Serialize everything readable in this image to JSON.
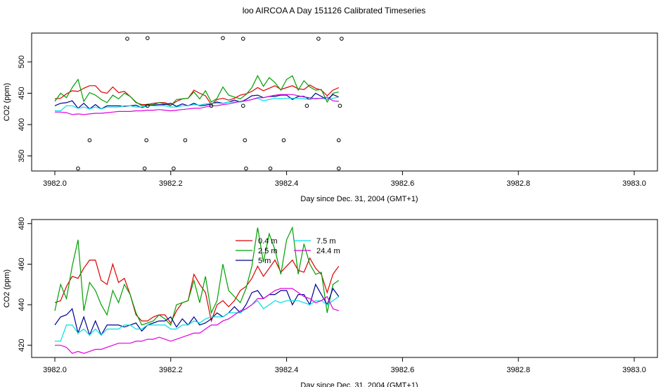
{
  "figure": {
    "title": "loo AIRCOA A  Day 151126  Calibrated Timeseries"
  },
  "chart_data": [
    {
      "type": "line",
      "panel": "top",
      "xlabel": "Day since Dec. 31, 2004 (GMT+1)",
      "ylabel": "CO2 (ppm)",
      "xlim": [
        3982.0,
        3983.0
      ],
      "ylim": [
        326,
        546
      ],
      "xticks": [
        3982.0,
        3982.2,
        3982.4,
        3982.6,
        3982.8,
        3983.0
      ],
      "xtick_labels": [
        "3982.0",
        "3982.2",
        "3982.4",
        "3982.6",
        "3982.8",
        "3983.0"
      ],
      "yticks": [
        350,
        400,
        450,
        500
      ],
      "ytick_labels": [
        "350",
        "400",
        "450",
        "500"
      ],
      "x": [
        3982.0,
        3982.01,
        3982.02,
        3982.03,
        3982.04,
        3982.05,
        3982.06,
        3982.07,
        3982.08,
        3982.09,
        3982.1,
        3982.11,
        3982.12,
        3982.13,
        3982.14,
        3982.15,
        3982.16,
        3982.17,
        3982.18,
        3982.19,
        3982.2,
        3982.21,
        3982.22,
        3982.23,
        3982.24,
        3982.25,
        3982.26,
        3982.27,
        3982.28,
        3982.29,
        3982.3,
        3982.31,
        3982.32,
        3982.33,
        3982.34,
        3982.35,
        3982.36,
        3982.37,
        3982.38,
        3982.39,
        3982.4,
        3982.41,
        3982.42,
        3982.43,
        3982.44,
        3982.45,
        3982.46,
        3982.47,
        3982.48,
        3982.49
      ],
      "series": [
        {
          "name": "0.4 m",
          "color": "#dd0000",
          "values": [
            441,
            442,
            449,
            454,
            453,
            458,
            462,
            462,
            452,
            450,
            460,
            451,
            453,
            445,
            435,
            432,
            432,
            434,
            435,
            435,
            431,
            437,
            441,
            442,
            455,
            450,
            446,
            432,
            440,
            442,
            439,
            442,
            447,
            449,
            453,
            459,
            454,
            458,
            462,
            456,
            459,
            462,
            457,
            456,
            463,
            458,
            455,
            446,
            455,
            459
          ]
        },
        {
          "name": "2.5 m",
          "color": "#00a000",
          "values": [
            437,
            450,
            443,
            459,
            472,
            437,
            451,
            447,
            440,
            435,
            447,
            441,
            450,
            445,
            436,
            430,
            431,
            432,
            435,
            433,
            430,
            440,
            441,
            442,
            452,
            441,
            454,
            436,
            442,
            460,
            447,
            444,
            441,
            448,
            459,
            478,
            461,
            475,
            467,
            455,
            472,
            478,
            455,
            470,
            460,
            455,
            456,
            436,
            450,
            452
          ]
        },
        {
          "name": "5 m",
          "color": "#000090",
          "values": [
            430,
            434,
            435,
            438,
            426,
            434,
            425,
            432,
            425,
            430,
            430,
            430,
            429,
            430,
            431,
            427,
            430,
            431,
            432,
            432,
            434,
            429,
            433,
            430,
            434,
            430,
            431,
            433,
            436,
            434,
            436,
            439,
            436,
            440,
            446,
            447,
            443,
            445,
            445,
            447,
            447,
            440,
            445,
            445,
            440,
            450,
            445,
            440,
            448,
            444
          ]
        },
        {
          "name": "7.5 m",
          "color": "#00e0e0",
          "values": [
            422,
            422,
            430,
            430,
            426,
            428,
            425,
            428,
            425,
            428,
            428,
            428,
            430,
            430,
            428,
            428,
            430,
            430,
            430,
            430,
            428,
            428,
            430,
            430,
            432,
            431,
            433,
            434,
            434,
            434,
            436,
            436,
            436,
            438,
            440,
            442,
            438,
            440,
            442,
            441,
            442,
            442,
            442,
            441,
            440,
            442,
            442,
            440,
            442,
            444
          ]
        },
        {
          "name": "24.4 m",
          "color": "#e000e0",
          "values": [
            420,
            420,
            419,
            416,
            417,
            416,
            417,
            418,
            418,
            419,
            420,
            421,
            421,
            421,
            422,
            422,
            423,
            423,
            424,
            423,
            422,
            423,
            424,
            425,
            426,
            426,
            428,
            430,
            430,
            432,
            433,
            435,
            437,
            438,
            440,
            443,
            443,
            445,
            447,
            448,
            448,
            448,
            446,
            444,
            443,
            441,
            442,
            444,
            438,
            437
          ]
        }
      ],
      "points": {
        "x": [
          3982.04,
          3982.06,
          3982.125,
          3982.155,
          3982.158,
          3982.16,
          3982.16,
          3982.205,
          3982.225,
          3982.27,
          3982.29,
          3982.325,
          3982.325,
          3982.328,
          3982.33,
          3982.372,
          3982.395,
          3982.435,
          3982.455,
          3982.49,
          3982.49,
          3982.492,
          3982.495
        ],
        "y": [
          330,
          375,
          537,
          330,
          375,
          538,
          430,
          330,
          375,
          430,
          538,
          537,
          430,
          375,
          330,
          330,
          375,
          430,
          537,
          330,
          375,
          430,
          537
        ]
      }
    },
    {
      "type": "line",
      "panel": "bottom",
      "xlabel": "Day since Dec. 31, 2004 (GMT+1)",
      "ylabel": "CO2 (ppm)",
      "xlim": [
        3982.0,
        3983.0
      ],
      "ylim": [
        414,
        482
      ],
      "xticks": [
        3982.0,
        3982.2,
        3982.4,
        3982.6,
        3982.8,
        3983.0
      ],
      "xtick_labels": [
        "3982.0",
        "3982.2",
        "3982.4",
        "3982.6",
        "3982.8",
        "3983.0"
      ],
      "yticks": [
        420,
        440,
        460,
        480
      ],
      "ytick_labels": [
        "420",
        "440",
        "460",
        "480"
      ],
      "legend": {
        "position": "top-center",
        "items": [
          {
            "label": "0.4 m",
            "color": "#dd0000"
          },
          {
            "label": "2.5 m",
            "color": "#00a000"
          },
          {
            "label": "5 m",
            "color": "#000090"
          },
          {
            "label": "7.5 m",
            "color": "#00e0e0"
          },
          {
            "label": "24.4 m",
            "color": "#e000e0"
          }
        ]
      },
      "x": [
        3982.0,
        3982.01,
        3982.02,
        3982.03,
        3982.04,
        3982.05,
        3982.06,
        3982.07,
        3982.08,
        3982.09,
        3982.1,
        3982.11,
        3982.12,
        3982.13,
        3982.14,
        3982.15,
        3982.16,
        3982.17,
        3982.18,
        3982.19,
        3982.2,
        3982.21,
        3982.22,
        3982.23,
        3982.24,
        3982.25,
        3982.26,
        3982.27,
        3982.28,
        3982.29,
        3982.3,
        3982.31,
        3982.32,
        3982.33,
        3982.34,
        3982.35,
        3982.36,
        3982.37,
        3982.38,
        3982.39,
        3982.4,
        3982.41,
        3982.42,
        3982.43,
        3982.44,
        3982.45,
        3982.46,
        3982.47,
        3982.48,
        3982.49
      ],
      "series": [
        {
          "name": "0.4 m",
          "color": "#dd0000",
          "values": [
            441,
            442,
            449,
            454,
            453,
            458,
            462,
            462,
            452,
            450,
            460,
            451,
            453,
            445,
            435,
            432,
            432,
            434,
            435,
            435,
            431,
            437,
            441,
            442,
            455,
            450,
            446,
            432,
            440,
            442,
            439,
            442,
            447,
            449,
            453,
            459,
            454,
            458,
            462,
            456,
            459,
            462,
            457,
            456,
            463,
            458,
            455,
            446,
            455,
            459
          ]
        },
        {
          "name": "2.5 m",
          "color": "#00a000",
          "values": [
            437,
            450,
            443,
            459,
            472,
            437,
            451,
            447,
            440,
            435,
            447,
            441,
            450,
            445,
            436,
            430,
            431,
            432,
            435,
            433,
            430,
            440,
            441,
            442,
            452,
            441,
            454,
            436,
            442,
            460,
            447,
            444,
            441,
            448,
            459,
            478,
            461,
            475,
            467,
            455,
            472,
            478,
            455,
            470,
            460,
            455,
            456,
            436,
            450,
            452
          ]
        },
        {
          "name": "5 m",
          "color": "#000090",
          "values": [
            430,
            434,
            435,
            438,
            426,
            434,
            425,
            432,
            425,
            430,
            430,
            430,
            429,
            430,
            431,
            427,
            430,
            431,
            432,
            432,
            434,
            429,
            433,
            430,
            434,
            430,
            431,
            433,
            436,
            434,
            436,
            439,
            436,
            440,
            446,
            447,
            443,
            445,
            445,
            447,
            447,
            440,
            445,
            445,
            440,
            450,
            445,
            440,
            448,
            444
          ]
        },
        {
          "name": "7.5 m",
          "color": "#00e0e0",
          "values": [
            422,
            422,
            430,
            430,
            426,
            428,
            425,
            428,
            425,
            428,
            428,
            428,
            430,
            430,
            428,
            428,
            430,
            430,
            430,
            430,
            428,
            428,
            430,
            430,
            432,
            431,
            433,
            434,
            434,
            434,
            436,
            436,
            436,
            438,
            440,
            442,
            438,
            440,
            442,
            441,
            442,
            442,
            442,
            441,
            440,
            442,
            442,
            440,
            442,
            444
          ]
        },
        {
          "name": "24.4 m",
          "color": "#e000e0",
          "values": [
            420,
            420,
            419,
            416,
            417,
            416,
            417,
            418,
            418,
            419,
            420,
            421,
            421,
            421,
            422,
            422,
            423,
            423,
            424,
            423,
            422,
            423,
            424,
            425,
            426,
            426,
            428,
            430,
            430,
            432,
            433,
            435,
            437,
            438,
            440,
            443,
            443,
            445,
            447,
            448,
            448,
            448,
            446,
            444,
            443,
            441,
            442,
            444,
            438,
            437
          ]
        }
      ]
    }
  ]
}
